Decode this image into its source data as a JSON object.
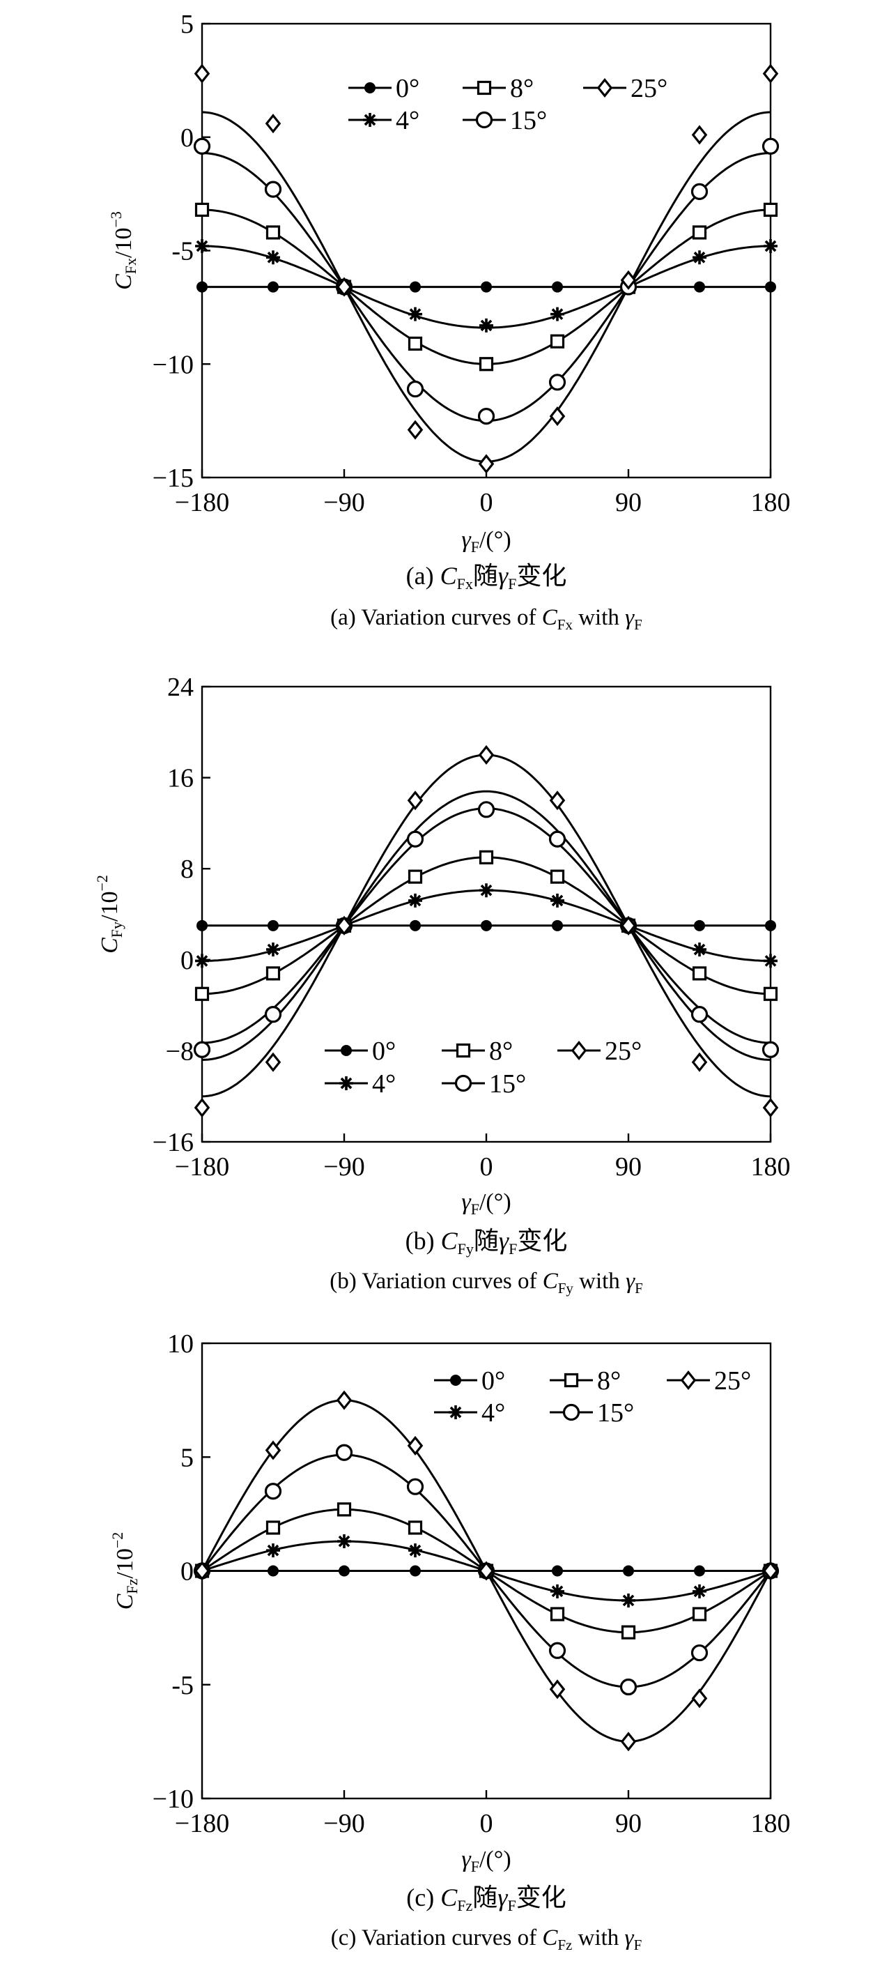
{
  "chart_data": [
    {
      "type": "line",
      "panel": "a",
      "ylabel": {
        "main": "C",
        "sub": "Fx",
        "suffix": "/10",
        "sup": "−3"
      },
      "xlabel": {
        "main": "γ",
        "sub": "F",
        "suffix": "/(°)"
      },
      "caption_zh": {
        "pre": "(a) ",
        "main": "C",
        "sub": "Fx",
        "mid": "随",
        "main2": "γ",
        "sub2": "F",
        "post": "变化"
      },
      "caption_en": {
        "pre": "(a) Variation curves of ",
        "main": "C",
        "sub": "Fx",
        "mid": " with ",
        "main2": "γ",
        "sub2": "F"
      },
      "xlim": [
        -180,
        180
      ],
      "ylim": [
        -15,
        5
      ],
      "xticks": [
        -180,
        -90,
        0,
        90,
        180
      ],
      "yticks": [
        5,
        0,
        -5,
        -10,
        -15
      ],
      "xtick_labels": [
        "−180",
        "−90",
        "0",
        "90",
        "180"
      ],
      "ytick_labels": [
        "5",
        "0",
        "-5",
        "−10",
        "−15"
      ],
      "legend": {
        "items": [
          "0°",
          "4°",
          "8°",
          "15°",
          "25°"
        ],
        "layout": "top-center, two rows"
      },
      "model": {
        "kind": "cos",
        "base": -6.6,
        "amp": [
          0,
          1.8,
          3.4,
          5.9,
          7.7
        ]
      },
      "marker_x": [
        -180,
        -135,
        -90,
        -45,
        0,
        45,
        90,
        135,
        180
      ],
      "series": [
        {
          "name": "0°",
          "marker": "dot",
          "values": [
            -6.6,
            -6.6,
            -6.6,
            -6.6,
            -6.6,
            -6.6,
            -6.6,
            -6.6,
            -6.6
          ]
        },
        {
          "name": "4°",
          "marker": "star",
          "values": [
            -4.8,
            -5.3,
            -6.6,
            -7.8,
            -8.3,
            -7.8,
            -6.6,
            -5.3,
            -4.8
          ]
        },
        {
          "name": "8°",
          "marker": "square",
          "values": [
            -3.2,
            -4.2,
            -6.6,
            -9.1,
            -10.0,
            -9.0,
            -6.6,
            -4.2,
            -3.2
          ]
        },
        {
          "name": "15°",
          "marker": "circle",
          "values": [
            -0.4,
            -2.3,
            -6.6,
            -11.1,
            -12.3,
            -10.8,
            -6.6,
            -2.4,
            -0.4
          ]
        },
        {
          "name": "25°",
          "marker": "diamond",
          "values": [
            2.8,
            0.6,
            -6.6,
            -12.9,
            -14.4,
            -12.3,
            -6.3,
            0.1,
            2.8
          ]
        }
      ]
    },
    {
      "type": "line",
      "panel": "b",
      "ylabel": {
        "main": "C",
        "sub": "Fy",
        "suffix": "/10",
        "sup": "−2"
      },
      "xlabel": {
        "main": "γ",
        "sub": "F",
        "suffix": "/(°)"
      },
      "caption_zh": {
        "pre": "(b) ",
        "main": "C",
        "sub": "Fy",
        "mid": "随",
        "main2": "γ",
        "sub2": "F",
        "post": "变化"
      },
      "caption_en": {
        "pre": "(b) Variation curves of ",
        "main": "C",
        "sub": "Fy",
        "mid": " with ",
        "main2": "γ",
        "sub2": "F"
      },
      "xlim": [
        -180,
        180
      ],
      "ylim": [
        -16,
        24
      ],
      "xticks": [
        -180,
        -90,
        0,
        90,
        180
      ],
      "yticks": [
        24,
        16,
        8,
        0,
        -8,
        -16
      ],
      "xtick_labels": [
        "−180",
        "−90",
        "0",
        "90",
        "180"
      ],
      "ytick_labels": [
        "24",
        "16",
        "8",
        "0",
        "−8",
        "−16"
      ],
      "legend": {
        "items": [
          "0°",
          "4°",
          "8°",
          "15°",
          "25°"
        ],
        "layout": "bottom-center, two rows"
      },
      "model": {
        "kind": "cos",
        "base": 3.0,
        "amp": [
          0,
          -3.1,
          -6.0,
          -10.3,
          -15.0
        ]
      },
      "extra_curve": {
        "base": 3.0,
        "amp": -11.8
      },
      "marker_x": [
        -180,
        -135,
        -90,
        -45,
        0,
        45,
        90,
        135,
        180
      ],
      "series": [
        {
          "name": "0°",
          "marker": "dot",
          "values": [
            3.0,
            3.0,
            3.0,
            3.0,
            3.0,
            3.0,
            3.0,
            3.0,
            3.0
          ]
        },
        {
          "name": "4°",
          "marker": "star",
          "values": [
            -0.1,
            0.9,
            3.0,
            5.2,
            6.1,
            5.2,
            3.0,
            0.9,
            -0.1
          ]
        },
        {
          "name": "8°",
          "marker": "square",
          "values": [
            -3.0,
            -1.2,
            3.0,
            7.3,
            9.0,
            7.3,
            3.0,
            -1.2,
            -3.0
          ]
        },
        {
          "name": "15°",
          "marker": "circle",
          "values": [
            -7.9,
            -4.8,
            3.0,
            10.6,
            13.2,
            10.6,
            3.0,
            -4.8,
            -7.9
          ]
        },
        {
          "name": "25°",
          "marker": "diamond",
          "values": [
            -13.0,
            -9.0,
            3.0,
            14.0,
            18.0,
            14.0,
            3.0,
            -9.0,
            -13.0
          ]
        }
      ]
    },
    {
      "type": "line",
      "panel": "c",
      "ylabel": {
        "main": "C",
        "sub": "Fz",
        "suffix": "/10",
        "sup": "−2"
      },
      "xlabel": {
        "main": "γ",
        "sub": "F",
        "suffix": "/(°)"
      },
      "caption_zh": {
        "pre": "(c) ",
        "main": "C",
        "sub": "Fz",
        "mid": "随",
        "main2": "γ",
        "sub2": "F",
        "post": "变化"
      },
      "caption_en": {
        "pre": "(c) Variation curves of ",
        "main": "C",
        "sub": "Fz",
        "mid": " with ",
        "main2": "γ",
        "sub2": "F"
      },
      "xlim": [
        -180,
        180
      ],
      "ylim": [
        -10,
        10
      ],
      "xticks": [
        -180,
        -90,
        0,
        90,
        180
      ],
      "yticks": [
        10,
        5,
        0,
        -5,
        -10
      ],
      "xtick_labels": [
        "−180",
        "−90",
        "0",
        "90",
        "180"
      ],
      "ytick_labels": [
        "10",
        "5",
        "0",
        "-5",
        "−10"
      ],
      "legend": {
        "items": [
          "0°",
          "4°",
          "8°",
          "15°",
          "25°"
        ],
        "layout": "top-right, two rows"
      },
      "model": {
        "kind": "sin",
        "base": 0,
        "amp": [
          0,
          1.3,
          2.7,
          5.1,
          7.5
        ]
      },
      "marker_x": [
        -180,
        -135,
        -90,
        -45,
        0,
        45,
        90,
        135,
        180
      ],
      "series": [
        {
          "name": "0°",
          "marker": "dot",
          "values": [
            0,
            0,
            0,
            0,
            0,
            0,
            0,
            0,
            0
          ]
        },
        {
          "name": "4°",
          "marker": "star",
          "values": [
            0,
            0.9,
            1.3,
            0.9,
            0,
            -0.9,
            -1.3,
            -0.9,
            0
          ]
        },
        {
          "name": "8°",
          "marker": "square",
          "values": [
            0,
            1.9,
            2.7,
            1.9,
            0,
            -1.9,
            -2.7,
            -1.9,
            0
          ]
        },
        {
          "name": "15°",
          "marker": "circle",
          "values": [
            0,
            3.5,
            5.2,
            3.7,
            0,
            -3.5,
            -5.1,
            -3.6,
            0
          ]
        },
        {
          "name": "25°",
          "marker": "diamond",
          "values": [
            0,
            5.3,
            7.5,
            5.5,
            0,
            -5.2,
            -7.5,
            -5.6,
            0
          ]
        }
      ]
    }
  ]
}
